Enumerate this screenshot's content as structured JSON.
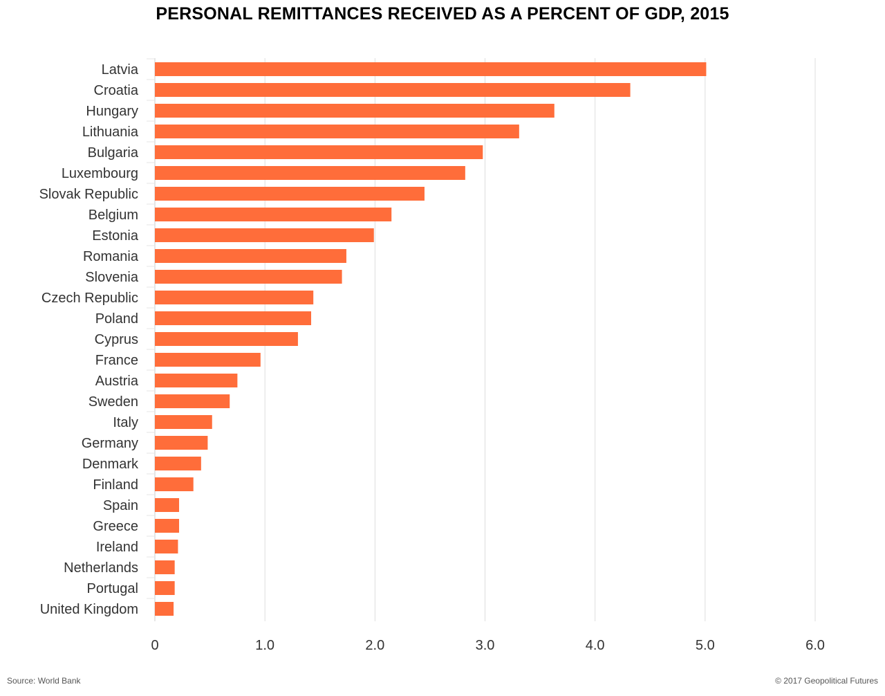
{
  "chart_data": {
    "type": "bar",
    "orientation": "horizontal",
    "title": "PERSONAL REMITTANCES RECEIVED AS A PERCENT OF GDP, 2015",
    "categories": [
      "Latvia",
      "Croatia",
      "Hungary",
      "Lithuania",
      "Bulgaria",
      "Luxembourg",
      "Slovak Republic",
      "Belgium",
      "Estonia",
      "Romania",
      "Slovenia",
      "Czech Republic",
      "Poland",
      "Cyprus",
      "France",
      "Austria",
      "Sweden",
      "Italy",
      "Germany",
      "Denmark",
      "Finland",
      "Spain",
      "Greece",
      "Ireland",
      "Netherlands",
      "Portugal",
      "United Kingdom"
    ],
    "values": [
      5.01,
      4.32,
      3.63,
      3.31,
      2.98,
      2.82,
      2.45,
      2.15,
      1.99,
      1.74,
      1.7,
      1.44,
      1.42,
      1.3,
      0.96,
      0.75,
      0.68,
      0.52,
      0.48,
      0.42,
      0.35,
      0.22,
      0.22,
      0.21,
      0.18,
      0.18,
      0.17
    ],
    "xlim": [
      0,
      6
    ],
    "xticks": [
      "0",
      "1.0",
      "2.0",
      "3.0",
      "4.0",
      "5.0",
      "6.0"
    ],
    "grid": "vertical",
    "bar_color": "#FF6D3A",
    "grid_color": "#DDDDDD",
    "xlabel": "",
    "ylabel": ""
  },
  "footer": {
    "source": "Source: World Bank",
    "credit": "© 2017 Geopolitical Futures"
  }
}
